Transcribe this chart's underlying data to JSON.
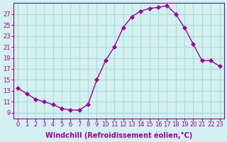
{
  "x": [
    0,
    1,
    2,
    3,
    4,
    5,
    6,
    7,
    8,
    9,
    10,
    11,
    12,
    13,
    14,
    15,
    16,
    17,
    18,
    19,
    20,
    21,
    22,
    23
  ],
  "y": [
    13.5,
    12.5,
    11.5,
    11.0,
    10.5,
    9.8,
    9.5,
    9.5,
    10.5,
    15.0,
    18.5,
    21.0,
    24.5,
    26.5,
    27.5,
    28.0,
    28.2,
    28.5,
    27.0,
    24.5,
    21.5,
    18.5,
    18.5,
    17.5
  ],
  "line_color": "#990099",
  "marker": "D",
  "marker_size": 3,
  "background_color": "#d4f0f0",
  "grid_color": "#aadddd",
  "xlabel": "Windchill (Refroidissement éolien,°C)",
  "xlabel_fontsize": 7,
  "tick_color": "#990099",
  "tick_fontsize": 6,
  "xlim": [
    -0.5,
    23.5
  ],
  "ylim": [
    8,
    29
  ],
  "yticks": [
    9,
    11,
    13,
    15,
    17,
    19,
    21,
    23,
    25,
    27
  ],
  "xticks": [
    0,
    1,
    2,
    3,
    4,
    5,
    6,
    7,
    8,
    9,
    10,
    11,
    12,
    13,
    14,
    15,
    16,
    17,
    18,
    19,
    20,
    21,
    22,
    23
  ]
}
